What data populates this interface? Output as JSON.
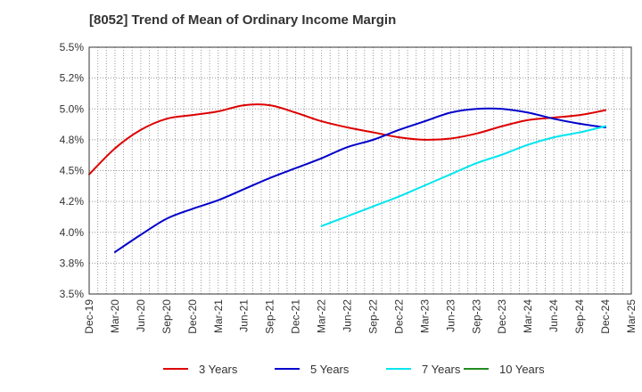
{
  "chart_data": {
    "type": "line",
    "title": "[8052]  Trend of Mean of Ordinary Income Margin",
    "xlabel": "",
    "ylabel": "",
    "x": [
      "Dec-19",
      "Mar-20",
      "Jun-20",
      "Sep-20",
      "Dec-20",
      "Mar-21",
      "Jun-21",
      "Sep-21",
      "Dec-21",
      "Mar-22",
      "Jun-22",
      "Sep-22",
      "Dec-22",
      "Mar-23",
      "Jun-23",
      "Sep-23",
      "Dec-23",
      "Mar-24",
      "Jun-24",
      "Sep-24",
      "Dec-24",
      "Mar-25"
    ],
    "yticks": [
      "3.5%",
      "3.8%",
      "4.0%",
      "4.2%",
      "4.5%",
      "4.8%",
      "5.0%",
      "5.2%",
      "5.5%"
    ],
    "ylim": [
      3.5,
      5.5
    ],
    "grid": true,
    "legend_position": "bottom",
    "series": [
      {
        "name": "3 Years",
        "color": "#dd0000",
        "values": [
          4.47,
          4.68,
          4.83,
          4.92,
          4.95,
          4.98,
          5.03,
          5.03,
          4.97,
          4.9,
          4.85,
          4.81,
          4.77,
          4.75,
          4.76,
          4.8,
          4.86,
          4.91,
          4.93,
          4.95,
          4.99,
          null
        ]
      },
      {
        "name": "5 Years",
        "color": "#0000cc",
        "values": [
          null,
          3.84,
          3.98,
          4.11,
          4.19,
          4.26,
          4.35,
          4.44,
          4.52,
          4.6,
          4.69,
          4.75,
          4.83,
          4.9,
          4.97,
          5.0,
          5.0,
          4.97,
          4.92,
          4.88,
          4.85,
          null
        ]
      },
      {
        "name": "7 Years",
        "color": "#00e5ee",
        "values": [
          null,
          null,
          null,
          null,
          null,
          null,
          null,
          null,
          null,
          4.05,
          4.13,
          4.21,
          4.29,
          4.38,
          4.47,
          4.56,
          4.63,
          4.71,
          4.77,
          4.81,
          4.86,
          null
        ]
      },
      {
        "name": "10 Years",
        "color": "#228b22",
        "values": [
          null,
          null,
          null,
          null,
          null,
          null,
          null,
          null,
          null,
          null,
          null,
          null,
          null,
          null,
          null,
          null,
          null,
          null,
          null,
          null,
          null,
          null
        ]
      }
    ]
  },
  "colors": {
    "grid": "#999999",
    "axis": "#333333",
    "background": "#ffffff"
  }
}
